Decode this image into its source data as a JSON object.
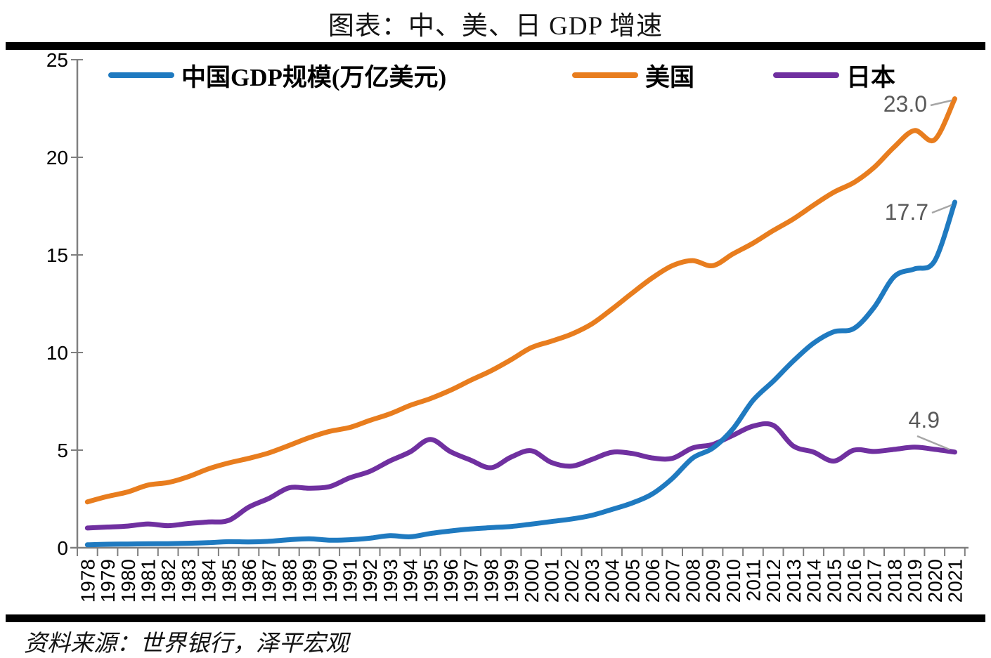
{
  "title": "图表：中、美、日 GDP 增速",
  "source": "资料来源：世界银行，泽平宏观",
  "legend": [
    {
      "label": "中国GDP规模(万亿美元)",
      "color": "#1F7AC0"
    },
    {
      "label": "美国",
      "color": "#E87D1E"
    },
    {
      "label": "日本",
      "color": "#7030A0"
    }
  ],
  "colors": {
    "axis": "#7F7F7F",
    "data_label": "#595959",
    "leader_line": "#A6A6A6",
    "rule_bar": "#000000"
  },
  "chart_data": {
    "type": "line",
    "title": "图表：中、美、日 GDP 增速",
    "xlabel": "",
    "ylabel": "",
    "unit": "万亿美元",
    "ylim": [
      0,
      25
    ],
    "yticks": [
      0,
      5,
      10,
      15,
      20,
      25
    ],
    "grid": false,
    "smoothed": true,
    "legend_position": "top",
    "x": [
      1978,
      1979,
      1980,
      1981,
      1982,
      1983,
      1984,
      1985,
      1986,
      1987,
      1988,
      1989,
      1990,
      1991,
      1992,
      1993,
      1994,
      1995,
      1996,
      1997,
      1998,
      1999,
      2000,
      2001,
      2002,
      2003,
      2004,
      2005,
      2006,
      2007,
      2008,
      2009,
      2010,
      2011,
      2012,
      2013,
      2014,
      2015,
      2016,
      2017,
      2018,
      2019,
      2020,
      2021
    ],
    "series": [
      {
        "name": "中国GDP规模(万亿美元)",
        "color": "#1F7AC0",
        "end_label": "17.7",
        "values": [
          0.15,
          0.18,
          0.19,
          0.2,
          0.21,
          0.23,
          0.26,
          0.31,
          0.3,
          0.33,
          0.41,
          0.46,
          0.39,
          0.41,
          0.49,
          0.62,
          0.56,
          0.73,
          0.86,
          0.96,
          1.03,
          1.09,
          1.21,
          1.34,
          1.47,
          1.66,
          1.96,
          2.29,
          2.75,
          3.55,
          4.59,
          5.1,
          6.09,
          7.55,
          8.53,
          9.57,
          10.48,
          11.06,
          11.23,
          12.31,
          13.89,
          14.28,
          14.69,
          17.7
        ]
      },
      {
        "name": "美国",
        "color": "#E87D1E",
        "end_label": "23.0",
        "values": [
          2.35,
          2.63,
          2.86,
          3.21,
          3.34,
          3.64,
          4.04,
          4.34,
          4.58,
          4.86,
          5.24,
          5.64,
          5.96,
          6.16,
          6.52,
          6.86,
          7.29,
          7.64,
          8.07,
          8.58,
          9.06,
          9.63,
          10.25,
          10.58,
          10.94,
          11.46,
          12.22,
          13.04,
          13.82,
          14.45,
          14.71,
          14.45,
          15.05,
          15.6,
          16.25,
          16.84,
          17.55,
          18.21,
          18.71,
          19.48,
          20.53,
          21.37,
          20.9,
          23.0
        ]
      },
      {
        "name": "日本",
        "color": "#7030A0",
        "end_label": "4.9",
        "values": [
          1.01,
          1.06,
          1.11,
          1.22,
          1.13,
          1.24,
          1.32,
          1.4,
          2.08,
          2.53,
          3.07,
          3.05,
          3.13,
          3.58,
          3.91,
          4.45,
          4.91,
          5.55,
          4.92,
          4.49,
          4.1,
          4.64,
          4.97,
          4.37,
          4.18,
          4.52,
          4.89,
          4.83,
          4.6,
          4.58,
          5.11,
          5.29,
          5.76,
          6.23,
          6.27,
          5.21,
          4.9,
          4.44,
          5.0,
          4.93,
          5.04,
          5.15,
          5.04,
          4.9
        ]
      }
    ]
  }
}
